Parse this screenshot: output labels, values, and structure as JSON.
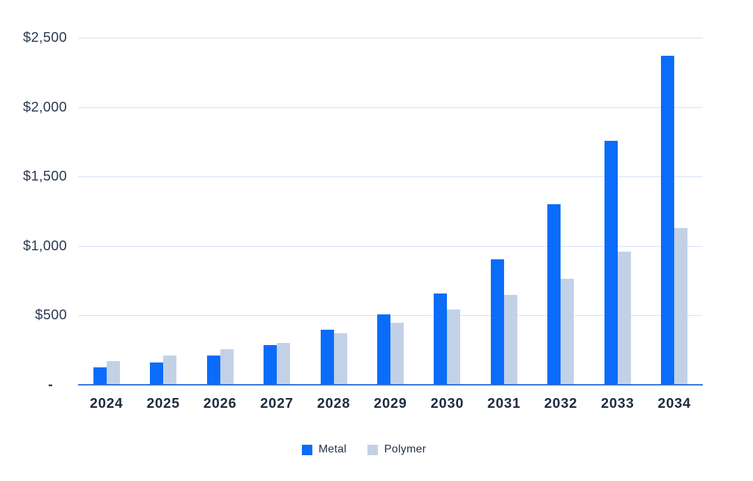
{
  "chart_data": {
    "type": "bar",
    "title": "",
    "xlabel": "",
    "ylabel": "",
    "categories": [
      "2024",
      "2025",
      "2026",
      "2027",
      "2028",
      "2029",
      "2030",
      "2031",
      "2032",
      "2033",
      "2034"
    ],
    "series": [
      {
        "name": "Metal",
        "color": "#0A6CF9",
        "values": [
          125,
          160,
          210,
          285,
          395,
          505,
          660,
          905,
          1300,
          1755,
          2370
        ]
      },
      {
        "name": "Polymer",
        "color": "#C3D1E7",
        "values": [
          170,
          210,
          255,
          300,
          370,
          445,
          540,
          650,
          765,
          960,
          1130
        ]
      }
    ],
    "ylim": [
      0,
      2500
    ],
    "y_ticks": [
      {
        "label": "$2,500",
        "value": 2500
      },
      {
        "label": "$2,000",
        "value": 2000
      },
      {
        "label": "$1,500",
        "value": 1500
      },
      {
        "label": "$1,000",
        "value": 1000
      },
      {
        "label": "$500",
        "value": 500
      },
      {
        "label": "-",
        "value": 0
      }
    ],
    "grid": true,
    "legend_position": "bottom"
  },
  "legend": {
    "items": [
      {
        "label": "Metal",
        "color": "#0A6CF9"
      },
      {
        "label": "Polymer",
        "color": "#C3D1E7"
      }
    ]
  },
  "colors": {
    "background": "#ffffff",
    "gridline": "#D3E1F5",
    "baseline": "#2E74D9",
    "tick_text": "#2B3A52",
    "category_text": "#1D2B3F",
    "legend_text": "#22304A"
  }
}
